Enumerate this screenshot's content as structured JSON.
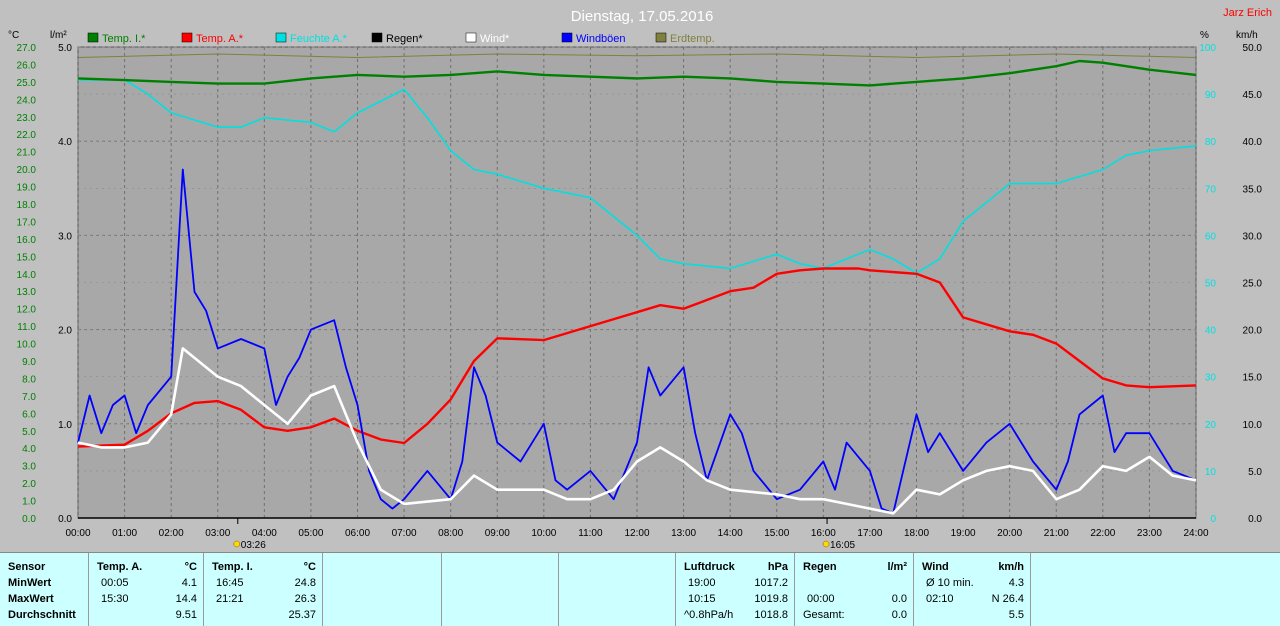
{
  "title": "Dienstag, 17.05.2016",
  "author": "Jarz Erich",
  "chart_data": {
    "type": "line",
    "title": "Dienstag, 17.05.2016",
    "x_ticks": [
      "00:00",
      "01:00",
      "02:00",
      "03:00",
      "04:00",
      "05:00",
      "06:00",
      "07:00",
      "08:00",
      "09:00",
      "10:00",
      "11:00",
      "12:00",
      "13:00",
      "14:00",
      "15:00",
      "16:00",
      "17:00",
      "18:00",
      "19:00",
      "20:00",
      "21:00",
      "22:00",
      "23:00",
      "24:00"
    ],
    "x_range": [
      0,
      24
    ],
    "axis_temp": {
      "unit": "°C",
      "range": [
        0,
        27
      ],
      "ticks": [
        "0.0",
        "1.0",
        "2.0",
        "3.0",
        "4.0",
        "5.0",
        "6.0",
        "7.0",
        "8.0",
        "9.0",
        "10.0",
        "11.0",
        "12.0",
        "13.0",
        "14.0",
        "15.0",
        "16.0",
        "17.0",
        "18.0",
        "19.0",
        "20.0",
        "21.0",
        "22.0",
        "23.0",
        "24.0",
        "25.0",
        "26.0",
        "27.0"
      ]
    },
    "axis_rain": {
      "unit": "l/m²",
      "range": [
        0,
        5
      ],
      "ticks": [
        "0.0",
        "1.0",
        "2.0",
        "3.0",
        "4.0",
        "5.0"
      ]
    },
    "axis_hum": {
      "unit": "%",
      "range": [
        0,
        100
      ],
      "ticks": [
        "0",
        "10",
        "20",
        "30",
        "40",
        "50",
        "60",
        "70",
        "80",
        "90",
        "100"
      ]
    },
    "axis_wind": {
      "unit": "km/h",
      "range": [
        0,
        50
      ],
      "ticks": [
        "0.0",
        "5.0",
        "10.0",
        "15.0",
        "20.0",
        "25.0",
        "30.0",
        "35.0",
        "40.0",
        "45.0",
        "50.0"
      ]
    },
    "grid": true,
    "legend_position": "top",
    "markers": [
      {
        "x": 3.43,
        "label": "03:26"
      },
      {
        "x": 16.08,
        "label": "16:05"
      }
    ],
    "series": [
      {
        "name": "Temp. I.*",
        "color": "#008000",
        "axis": "temp",
        "points": [
          [
            0,
            25.2
          ],
          [
            1,
            25.1
          ],
          [
            2,
            25.0
          ],
          [
            3,
            24.9
          ],
          [
            4,
            24.9
          ],
          [
            5,
            25.2
          ],
          [
            6,
            25.4
          ],
          [
            7,
            25.3
          ],
          [
            8,
            25.4
          ],
          [
            9,
            25.6
          ],
          [
            10,
            25.4
          ],
          [
            11,
            25.3
          ],
          [
            12,
            25.2
          ],
          [
            13,
            25.3
          ],
          [
            14,
            25.2
          ],
          [
            15,
            25.0
          ],
          [
            16,
            24.9
          ],
          [
            17,
            24.8
          ],
          [
            18,
            25.0
          ],
          [
            19,
            25.2
          ],
          [
            20,
            25.5
          ],
          [
            21,
            25.9
          ],
          [
            21.5,
            26.2
          ],
          [
            22,
            26.1
          ],
          [
            23,
            25.7
          ],
          [
            24,
            25.4
          ]
        ]
      },
      {
        "name": "Temp. A.*",
        "color": "#ff0000",
        "axis": "temp",
        "points": [
          [
            0,
            4.1
          ],
          [
            1,
            4.2
          ],
          [
            1.5,
            5.0
          ],
          [
            2,
            6.0
          ],
          [
            2.5,
            6.6
          ],
          [
            3,
            6.7
          ],
          [
            3.5,
            6.2
          ],
          [
            4,
            5.2
          ],
          [
            4.5,
            5.0
          ],
          [
            5,
            5.2
          ],
          [
            5.5,
            5.7
          ],
          [
            6,
            5.0
          ],
          [
            6.5,
            4.5
          ],
          [
            7,
            4.3
          ],
          [
            7.5,
            5.4
          ],
          [
            8,
            6.8
          ],
          [
            8.5,
            9.0
          ],
          [
            9,
            10.3
          ],
          [
            10,
            10.2
          ],
          [
            11,
            11.0
          ],
          [
            12,
            11.8
          ],
          [
            12.5,
            12.2
          ],
          [
            13,
            12.0
          ],
          [
            14,
            13.0
          ],
          [
            14.5,
            13.2
          ],
          [
            15,
            14.0
          ],
          [
            15.5,
            14.2
          ],
          [
            16,
            14.3
          ],
          [
            16.75,
            14.3
          ],
          [
            17,
            14.2
          ],
          [
            18,
            14.0
          ],
          [
            18.5,
            13.5
          ],
          [
            19,
            11.5
          ],
          [
            20,
            10.7
          ],
          [
            20.5,
            10.5
          ],
          [
            21,
            10.0
          ],
          [
            21.5,
            9.0
          ],
          [
            22,
            8.0
          ],
          [
            22.5,
            7.6
          ],
          [
            23,
            7.5
          ],
          [
            24,
            7.6
          ]
        ]
      },
      {
        "name": "Feuchte A.*",
        "color": "#00e0e0",
        "axis": "hum",
        "points": [
          [
            0,
            93
          ],
          [
            1,
            93
          ],
          [
            1.5,
            90
          ],
          [
            2,
            86
          ],
          [
            3,
            83
          ],
          [
            3.5,
            83
          ],
          [
            4,
            85
          ],
          [
            5,
            84
          ],
          [
            5.5,
            82
          ],
          [
            6,
            86
          ],
          [
            7,
            91
          ],
          [
            7.5,
            85
          ],
          [
            8,
            78
          ],
          [
            8.5,
            74
          ],
          [
            9,
            73
          ],
          [
            10,
            70
          ],
          [
            11,
            68
          ],
          [
            12,
            60
          ],
          [
            12.5,
            55
          ],
          [
            13,
            54
          ],
          [
            14,
            53
          ],
          [
            15,
            56
          ],
          [
            15.5,
            54
          ],
          [
            16,
            53
          ],
          [
            16.5,
            55
          ],
          [
            17,
            57
          ],
          [
            17.5,
            55
          ],
          [
            18,
            52
          ],
          [
            18.5,
            55
          ],
          [
            19,
            63
          ],
          [
            20,
            71
          ],
          [
            21,
            71
          ],
          [
            22,
            74
          ],
          [
            22.5,
            77
          ],
          [
            23,
            78
          ],
          [
            24,
            79
          ]
        ]
      },
      {
        "name": "Regen*",
        "color": "#000000",
        "axis": "rain",
        "points": [
          [
            0,
            0
          ],
          [
            24,
            0
          ]
        ]
      },
      {
        "name": "Wind*",
        "color": "#ffffff",
        "axis": "wind",
        "points": [
          [
            0,
            8
          ],
          [
            0.5,
            7.5
          ],
          [
            1,
            7.5
          ],
          [
            1.5,
            8
          ],
          [
            2,
            11
          ],
          [
            2.25,
            18
          ],
          [
            2.5,
            17
          ],
          [
            3,
            15
          ],
          [
            3.5,
            14
          ],
          [
            4,
            12
          ],
          [
            4.5,
            10
          ],
          [
            5,
            13
          ],
          [
            5.5,
            14
          ],
          [
            6,
            8
          ],
          [
            6.5,
            3
          ],
          [
            7,
            1.5
          ],
          [
            8,
            2
          ],
          [
            8.5,
            4.5
          ],
          [
            9,
            3
          ],
          [
            10,
            3
          ],
          [
            10.5,
            2
          ],
          [
            11,
            2
          ],
          [
            11.5,
            3
          ],
          [
            12,
            6
          ],
          [
            12.5,
            7.5
          ],
          [
            13,
            6
          ],
          [
            13.5,
            4
          ],
          [
            14,
            3
          ],
          [
            15,
            2.5
          ],
          [
            15.5,
            2
          ],
          [
            16,
            2
          ],
          [
            16.5,
            1.5
          ],
          [
            17,
            1
          ],
          [
            17.5,
            0.5
          ],
          [
            18,
            3
          ],
          [
            18.5,
            2.5
          ],
          [
            19,
            4
          ],
          [
            19.5,
            5
          ],
          [
            20,
            5.5
          ],
          [
            20.5,
            5
          ],
          [
            21,
            2
          ],
          [
            21.5,
            3
          ],
          [
            22,
            5.5
          ],
          [
            22.5,
            5
          ],
          [
            23,
            6.5
          ],
          [
            23.5,
            4.5
          ],
          [
            24,
            4
          ]
        ]
      },
      {
        "name": "Windböen",
        "color": "#0000ff",
        "axis": "wind",
        "points": [
          [
            0,
            8
          ],
          [
            0.25,
            13
          ],
          [
            0.5,
            9
          ],
          [
            0.75,
            12
          ],
          [
            1,
            13
          ],
          [
            1.25,
            9
          ],
          [
            1.5,
            12
          ],
          [
            2,
            15
          ],
          [
            2.25,
            37
          ],
          [
            2.5,
            24
          ],
          [
            2.75,
            22
          ],
          [
            3,
            18
          ],
          [
            3.5,
            19
          ],
          [
            4,
            18
          ],
          [
            4.25,
            12
          ],
          [
            4.5,
            15
          ],
          [
            4.75,
            17
          ],
          [
            5,
            20
          ],
          [
            5.5,
            21
          ],
          [
            5.75,
            16
          ],
          [
            6,
            12
          ],
          [
            6.25,
            5
          ],
          [
            6.5,
            2
          ],
          [
            6.75,
            1
          ],
          [
            7,
            2
          ],
          [
            7.5,
            5
          ],
          [
            8,
            2
          ],
          [
            8.25,
            6
          ],
          [
            8.5,
            16
          ],
          [
            8.75,
            13
          ],
          [
            9,
            8
          ],
          [
            9.5,
            6
          ],
          [
            10,
            10
          ],
          [
            10.25,
            4
          ],
          [
            10.5,
            3
          ],
          [
            11,
            5
          ],
          [
            11.5,
            2
          ],
          [
            12,
            8
          ],
          [
            12.25,
            16
          ],
          [
            12.5,
            13
          ],
          [
            13,
            16
          ],
          [
            13.25,
            9
          ],
          [
            13.5,
            4
          ],
          [
            14,
            11
          ],
          [
            14.25,
            9
          ],
          [
            14.5,
            5
          ],
          [
            15,
            2
          ],
          [
            15.5,
            3
          ],
          [
            16,
            6
          ],
          [
            16.25,
            3
          ],
          [
            16.5,
            8
          ],
          [
            17,
            5
          ],
          [
            17.25,
            1
          ],
          [
            17.5,
            0.5
          ],
          [
            18,
            11
          ],
          [
            18.25,
            7
          ],
          [
            18.5,
            9
          ],
          [
            19,
            5
          ],
          [
            19.5,
            8
          ],
          [
            20,
            10
          ],
          [
            20.5,
            6
          ],
          [
            21,
            3
          ],
          [
            21.25,
            6
          ],
          [
            21.5,
            11
          ],
          [
            22,
            13
          ],
          [
            22.25,
            7
          ],
          [
            22.5,
            9
          ],
          [
            23,
            9
          ],
          [
            23.5,
            5
          ],
          [
            24,
            4
          ]
        ]
      },
      {
        "name": "Erdtemp.",
        "color": "#808040",
        "axis": "temp",
        "points": [
          [
            0,
            26.4
          ],
          [
            3,
            26.6
          ],
          [
            6,
            26.4
          ],
          [
            9,
            26.6
          ],
          [
            12,
            26.5
          ],
          [
            15,
            26.6
          ],
          [
            18,
            26.4
          ],
          [
            21,
            26.6
          ],
          [
            24,
            26.4
          ]
        ]
      }
    ]
  },
  "summary": {
    "sensor": {
      "head": "Sensor",
      "rows": [
        "MinWert",
        "MaxWert",
        "Durchschnitt"
      ]
    },
    "temp_a": {
      "head": "Temp. A.",
      "unit": "°C",
      "min_time": "00:05",
      "min": "4.1",
      "max_time": "15:30",
      "max": "14.4",
      "avg": "9.51"
    },
    "temp_i": {
      "head": "Temp. I.",
      "unit": "°C",
      "min_time": "16:45",
      "min": "24.8",
      "max_time": "21:21",
      "max": "26.3",
      "avg": "25.37"
    },
    "pressure": {
      "head": "Luftdruck",
      "unit": "hPa",
      "r1_label": "19:00",
      "r1_value": "1017.2",
      "r2_label": "10:15",
      "r2_value": "1019.8",
      "r3_label": "^0.8hPa/h",
      "r3_value": "1018.8"
    },
    "rain": {
      "head": "Regen",
      "unit": "l/m²",
      "r2_label": "00:00",
      "r2_value": "0.0",
      "r3_label": "Gesamt:",
      "r3_value": "0.0"
    },
    "wind": {
      "head": "Wind",
      "unit": "km/h",
      "r1_label": "Ø 10 min.",
      "r1_value": "4.3",
      "r2_label": "02:10",
      "r2_value": "N 26.4",
      "r3_value": "5.5"
    }
  }
}
